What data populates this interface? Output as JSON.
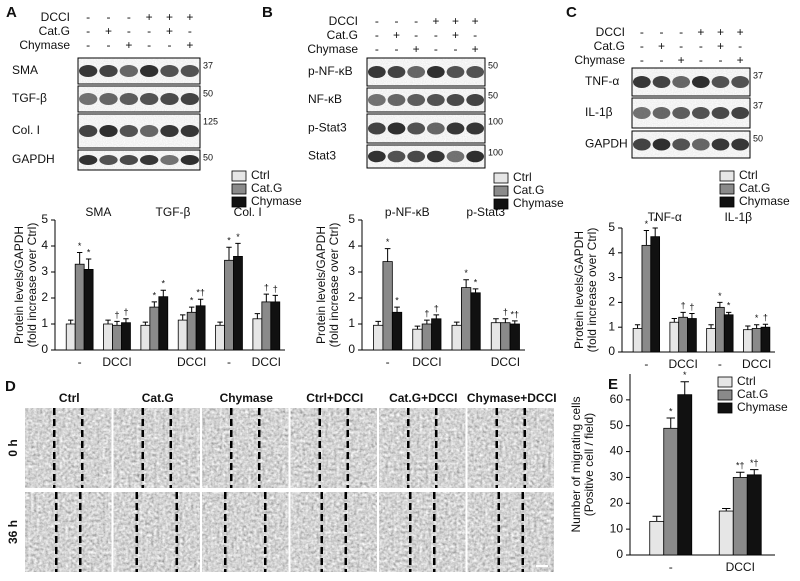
{
  "chart_data": [
    {
      "type": "bar",
      "panel": "A",
      "groups": [
        "SMA",
        "TGF-β",
        "Col. I"
      ],
      "categories": [
        "-",
        "DCCI",
        null,
        "DCCI",
        "-",
        "DCCI"
      ],
      "ylabel": [
        "Protein levels/GAPDH",
        "(fold increase over Ctrl)"
      ],
      "ylim": [
        0,
        5
      ],
      "yticks": [
        0,
        1,
        2,
        3,
        4,
        5
      ],
      "series": [
        {
          "name": "Ctrl",
          "color": "#e6e6e6",
          "values": [
            1,
            1,
            0.95,
            1.15,
            0.95,
            1.2
          ],
          "errors": [
            0.15,
            0.15,
            0.12,
            0.2,
            0.12,
            0.2
          ]
        },
        {
          "name": "Cat.G",
          "color": "#8a8a8a",
          "values": [
            3.3,
            0.95,
            1.65,
            1.45,
            3.45,
            1.85
          ],
          "errors": [
            0.45,
            0.15,
            0.2,
            0.2,
            0.5,
            0.3
          ],
          "annotations": [
            "*",
            "†",
            "*",
            "*",
            "*",
            "†"
          ]
        },
        {
          "name": "Chymase",
          "color": "#111111",
          "values": [
            3.1,
            1.05,
            2.05,
            1.7,
            3.6,
            1.85
          ],
          "errors": [
            0.4,
            0.15,
            0.25,
            0.25,
            0.5,
            0.25
          ],
          "annotations": [
            "*",
            "†",
            "*",
            "*†",
            "*",
            "†"
          ]
        }
      ]
    },
    {
      "type": "bar",
      "panel": "B",
      "groups": [
        "p-NF-κB",
        "p-Stat3"
      ],
      "categories": [
        "-",
        "DCCI",
        null,
        "DCCI"
      ],
      "ylabel": [
        "Protein levels/GAPDH",
        "(fold increase over Ctrl)"
      ],
      "ylim": [
        0,
        5
      ],
      "yticks": [
        0,
        1,
        2,
        3,
        4,
        5
      ],
      "series": [
        {
          "name": "Ctrl",
          "color": "#e6e6e6",
          "values": [
            0.95,
            0.8,
            0.95,
            1.05
          ],
          "errors": [
            0.15,
            0.12,
            0.12,
            0.15
          ]
        },
        {
          "name": "Cat.G",
          "color": "#8a8a8a",
          "values": [
            3.4,
            1.0,
            2.4,
            1.05
          ],
          "errors": [
            0.5,
            0.15,
            0.3,
            0.15
          ],
          "annotations": [
            "*",
            "†",
            "*",
            "†"
          ]
        },
        {
          "name": "Chymase",
          "color": "#111111",
          "values": [
            1.45,
            1.2,
            2.2,
            1.0
          ],
          "errors": [
            0.2,
            0.15,
            0.15,
            0.12
          ],
          "annotations": [
            "*",
            "†",
            "*",
            "*†"
          ]
        }
      ]
    },
    {
      "type": "bar",
      "panel": "C",
      "groups": [
        "TNF-α",
        "IL-1β"
      ],
      "categories": [
        "-",
        "DCCI",
        "-",
        "DCCI"
      ],
      "ylabel": [
        "Protein levels/GAPDH",
        "(fold increase over Ctrl)"
      ],
      "ylim": [
        0,
        5
      ],
      "yticks": [
        0,
        1,
        2,
        3,
        4,
        5
      ],
      "series": [
        {
          "name": "Ctrl",
          "color": "#e6e6e6",
          "values": [
            0.95,
            1.2,
            0.95,
            0.9
          ],
          "errors": [
            0.15,
            0.15,
            0.15,
            0.15
          ]
        },
        {
          "name": "Cat.G",
          "color": "#8a8a8a",
          "values": [
            4.3,
            1.4,
            1.8,
            0.95
          ],
          "errors": [
            0.6,
            0.2,
            0.2,
            0.15
          ],
          "annotations": [
            "*",
            "†",
            "*",
            "*"
          ]
        },
        {
          "name": "Chymase",
          "color": "#111111",
          "values": [
            4.65,
            1.35,
            1.5,
            1.0
          ],
          "errors": [
            0.35,
            0.2,
            0.1,
            0.12
          ],
          "annotations": [
            "*",
            "†",
            "*",
            "†"
          ]
        }
      ]
    },
    {
      "type": "bar",
      "panel": "E",
      "categories": [
        "-",
        "DCCI"
      ],
      "ylabel": [
        "Number of migrating cells",
        "(Positive cell / field)"
      ],
      "ylim": [
        0,
        70
      ],
      "yticks": [
        0,
        10,
        20,
        30,
        40,
        50,
        60
      ],
      "series": [
        {
          "name": "Ctrl",
          "color": "#e6e6e6",
          "values": [
            13,
            17
          ],
          "errors": [
            2,
            1
          ]
        },
        {
          "name": "Cat.G",
          "color": "#8a8a8a",
          "values": [
            49,
            30
          ],
          "errors": [
            4,
            2
          ],
          "annotations": [
            "*",
            "*†"
          ]
        },
        {
          "name": "Chymase",
          "color": "#111111",
          "values": [
            62,
            31
          ],
          "errors": [
            5,
            2
          ],
          "annotations": [
            "*",
            "*†"
          ]
        }
      ]
    }
  ],
  "blots": [
    {
      "conditions": [
        {
          "name": "DCCI",
          "signs": [
            "-",
            "-",
            "-",
            "+",
            "+",
            "+"
          ]
        },
        {
          "name": "Cat.G",
          "signs": [
            "-",
            "+",
            "-",
            "-",
            "+",
            "-"
          ]
        },
        {
          "name": "Chymase",
          "signs": [
            "-",
            "-",
            "+",
            "-",
            "-",
            "+"
          ]
        }
      ],
      "rows": [
        {
          "label": "SMA",
          "marker": "37"
        },
        {
          "label": "TGF-β",
          "marker": "50"
        },
        {
          "label": "Col. I",
          "marker": "125"
        },
        {
          "label": "GAPDH",
          "marker": "50"
        }
      ]
    },
    {
      "conditions": [
        {
          "name": "DCCI",
          "signs": [
            "-",
            "-",
            "-",
            "+",
            "+",
            "+"
          ]
        },
        {
          "name": "Cat.G",
          "signs": [
            "-",
            "+",
            "-",
            "-",
            "+",
            "-"
          ]
        },
        {
          "name": "Chymase",
          "signs": [
            "-",
            "-",
            "+",
            "-",
            "-",
            "+"
          ]
        }
      ],
      "rows": [
        {
          "label": "p-NF-κB",
          "marker": "50"
        },
        {
          "label": "NF-κB",
          "marker": "50"
        },
        {
          "label": "p-Stat3",
          "marker": "100"
        },
        {
          "label": "Stat3",
          "marker": "100"
        }
      ]
    },
    {
      "conditions": [
        {
          "name": "DCCI",
          "signs": [
            "-",
            "-",
            "-",
            "+",
            "+",
            "+"
          ]
        },
        {
          "name": "Cat.G",
          "signs": [
            "-",
            "+",
            "-",
            "-",
            "+",
            "-"
          ]
        },
        {
          "name": "Chymase",
          "signs": [
            "-",
            "-",
            "+",
            "-",
            "-",
            "+"
          ]
        }
      ],
      "rows": [
        {
          "label": "TNF-α",
          "marker": "37"
        },
        {
          "label": "IL-1β",
          "marker": "37"
        },
        {
          "label": "GAPDH",
          "marker": "50"
        }
      ]
    }
  ],
  "micrographs": {
    "panel": "D",
    "columns": [
      "Ctrl",
      "Cat.G",
      "Chymase",
      "Ctrl+DCCI",
      "Cat.G+DCCI",
      "Chymase+DCCI"
    ],
    "rows": [
      "0 h",
      "36 h"
    ]
  }
}
